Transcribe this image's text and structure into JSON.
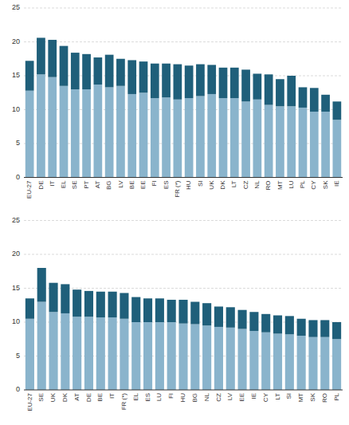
{
  "chart_data": [
    {
      "type": "bar",
      "stacked": true,
      "grid": true,
      "categories": [
        "EU-27",
        "DE",
        "IT",
        "EL",
        "SE",
        "PT",
        "AT",
        "BG",
        "LV",
        "BE",
        "EE",
        "FI",
        "ES",
        "FR (*)",
        "HU",
        "SI",
        "UK",
        "DK",
        "LT",
        "CZ",
        "NL",
        "RO",
        "MT",
        "LU",
        "PL",
        "CY",
        "SK",
        "IE"
      ],
      "series": [
        {
          "color": "#8ab4cc",
          "values": [
            12.8,
            15.2,
            14.8,
            13.5,
            13.0,
            13.0,
            13.7,
            13.3,
            13.5,
            12.3,
            12.5,
            11.7,
            11.8,
            11.5,
            11.7,
            12.0,
            12.3,
            11.7,
            11.7,
            11.2,
            11.5,
            10.7,
            10.5,
            10.5,
            10.3,
            9.7,
            9.7,
            8.5
          ]
        },
        {
          "color": "#1f5f7a",
          "values": [
            4.4,
            5.4,
            5.5,
            5.9,
            5.4,
            5.2,
            4.0,
            4.8,
            4.0,
            5.0,
            4.6,
            5.1,
            5.0,
            5.2,
            4.8,
            4.7,
            4.3,
            4.5,
            4.5,
            4.7,
            3.8,
            4.5,
            4.0,
            4.5,
            3.0,
            3.5,
            2.5,
            2.7
          ]
        }
      ],
      "ylim": [
        0,
        25
      ],
      "yticks": [
        0,
        5,
        10,
        15,
        20,
        25
      ]
    },
    {
      "type": "bar",
      "stacked": true,
      "grid": true,
      "categories": [
        "EU-27",
        "SE",
        "UK",
        "DK",
        "AT",
        "DE",
        "BE",
        "IT",
        "FR (*)",
        "EL",
        "ES",
        "LU",
        "FI",
        "HU",
        "BG",
        "NL",
        "CZ",
        "LV",
        "EE",
        "IE",
        "CY",
        "LT",
        "SI",
        "MT",
        "SK",
        "RO",
        "PL"
      ],
      "series": [
        {
          "color": "#8ab4cc",
          "values": [
            10.5,
            13.0,
            11.5,
            11.3,
            10.8,
            10.8,
            10.7,
            10.7,
            10.5,
            10.0,
            10.0,
            10.0,
            10.0,
            9.8,
            9.7,
            9.5,
            9.3,
            9.2,
            9.0,
            8.7,
            8.5,
            8.3,
            8.2,
            8.0,
            7.8,
            7.8,
            7.5
          ]
        },
        {
          "color": "#1f5f7a",
          "values": [
            3.0,
            5.0,
            4.3,
            4.3,
            4.0,
            3.8,
            3.8,
            3.8,
            3.8,
            3.7,
            3.5,
            3.5,
            3.3,
            3.5,
            3.3,
            3.3,
            3.0,
            3.0,
            2.8,
            2.8,
            2.7,
            2.7,
            2.7,
            2.5,
            2.5,
            2.5,
            2.5
          ]
        }
      ],
      "ylim": [
        0,
        25
      ],
      "yticks": [
        0,
        5,
        10,
        15,
        20,
        25
      ]
    }
  ]
}
